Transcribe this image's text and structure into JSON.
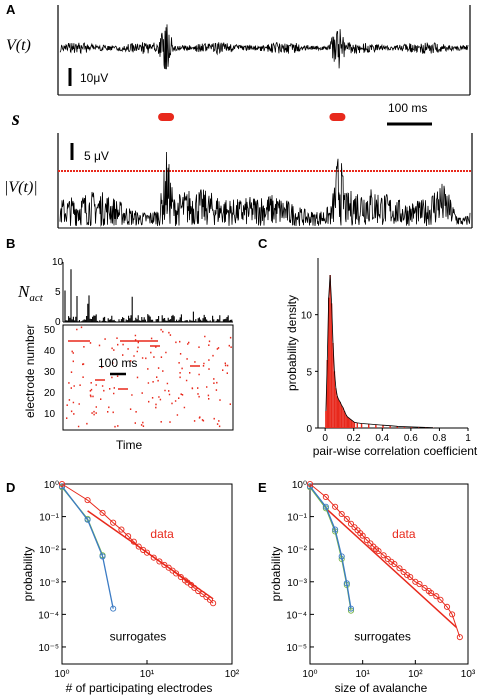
{
  "panels": {
    "A": {
      "letter": "A",
      "v_label": "V(t)",
      "v_scale": "10μV",
      "s_label": "s",
      "abs_label": "|V(t)|",
      "abs_scale": "5 μV",
      "time_scale": "100 ms",
      "threshold_color": "#e8291c",
      "event_times_fraction": [
        0.26,
        0.68
      ]
    },
    "B": {
      "letter": "B",
      "nact_label": "N",
      "nact_sub": "act",
      "yticks_top": [
        "0",
        "5",
        "10"
      ],
      "ylabel": "electrode number",
      "yticks": [
        "10",
        "20",
        "30",
        "40",
        "50"
      ],
      "xlabel": "Time",
      "time_scale": "100 ms",
      "raster_color": "#e8291c"
    }
  },
  "chart_data": [
    {
      "type": "bar",
      "id": "C",
      "letter": "C",
      "xlabel": "pair-wise correlation coefficient",
      "ylabel": "probability density",
      "xlim": [
        -0.05,
        1.0
      ],
      "ylim": [
        0,
        15
      ],
      "xticks": [
        "0",
        "0.2",
        "0.4",
        "0.6",
        "0.8",
        "1"
      ],
      "yticks": [
        "0",
        "5",
        "10"
      ],
      "bin_width": 0.01,
      "x": [
        0.0,
        0.01,
        0.02,
        0.03,
        0.04,
        0.05,
        0.06,
        0.07,
        0.08,
        0.09,
        0.1,
        0.11,
        0.12,
        0.13,
        0.14,
        0.15,
        0.16,
        0.17,
        0.18,
        0.19,
        0.2,
        0.22,
        0.25,
        0.3,
        0.35,
        0.4,
        0.45,
        0.5,
        0.55,
        0.6,
        0.65,
        0.7,
        0.75
      ],
      "values": [
        1.5,
        6.0,
        11.5,
        13.5,
        11.0,
        7.5,
        5.0,
        3.5,
        2.8,
        2.5,
        2.3,
        2.0,
        1.8,
        1.5,
        1.2,
        1.0,
        0.9,
        0.8,
        0.7,
        0.6,
        0.5,
        0.45,
        0.4,
        0.35,
        0.3,
        0.25,
        0.2,
        0.15,
        0.12,
        0.1,
        0.08,
        0.05,
        0.03
      ],
      "color": "#e8291c"
    },
    {
      "type": "line",
      "id": "D",
      "letter": "D",
      "xlabel": "# of participating electrodes",
      "ylabel": "probability",
      "xscale": "log",
      "yscale": "log",
      "xlim": [
        1,
        100
      ],
      "ylim": [
        3e-06,
        1
      ],
      "series": [
        {
          "name": "data",
          "color": "#e8291c",
          "marker": "circle",
          "x": [
            1,
            2,
            3,
            4,
            5,
            6,
            7,
            8,
            9,
            10,
            12,
            14,
            16,
            18,
            20,
            22,
            25,
            28,
            30,
            33,
            36,
            40,
            45,
            50,
            55,
            60
          ],
          "y": [
            1.0,
            0.32,
            0.13,
            0.065,
            0.04,
            0.025,
            0.017,
            0.012,
            0.0095,
            0.0078,
            0.0055,
            0.0042,
            0.0033,
            0.0027,
            0.0022,
            0.0018,
            0.0014,
            0.0011,
            0.00095,
            0.0008,
            0.00065,
            0.00052,
            0.00042,
            0.00034,
            0.00028,
            0.00022
          ]
        },
        {
          "name": "surrogates",
          "color": "#3b7bc4",
          "marker": "circle",
          "x": [
            1,
            2,
            3,
            4
          ],
          "y": [
            0.85,
            0.08,
            0.006,
            0.00015
          ]
        },
        {
          "name": "",
          "color": "#7ab648",
          "marker": "circle",
          "x": [
            1,
            2,
            3
          ],
          "y": [
            0.8,
            0.085,
            0.0065
          ]
        }
      ],
      "fit_line": {
        "x": [
          2,
          60
        ],
        "y": [
          0.15,
          0.0003
        ],
        "color": "#e8291c"
      }
    },
    {
      "type": "line",
      "id": "E",
      "letter": "E",
      "xlabel": "size of avalanche",
      "ylabel": "probability",
      "xscale": "log",
      "yscale": "log",
      "xlim": [
        1,
        1000
      ],
      "ylim": [
        3e-06,
        1
      ],
      "series": [
        {
          "name": "data",
          "color": "#e8291c",
          "marker": "circle",
          "x": [
            1,
            2,
            3,
            4,
            5,
            6,
            7,
            8,
            9,
            10,
            12,
            14,
            16,
            18,
            20,
            25,
            30,
            35,
            40,
            50,
            60,
            70,
            80,
            100,
            120,
            150,
            180,
            200,
            250,
            300,
            400,
            500,
            700
          ],
          "y": [
            1.0,
            0.4,
            0.2,
            0.12,
            0.085,
            0.06,
            0.047,
            0.038,
            0.031,
            0.026,
            0.019,
            0.015,
            0.012,
            0.01,
            0.0088,
            0.0065,
            0.005,
            0.0041,
            0.0035,
            0.0026,
            0.002,
            0.0016,
            0.0014,
            0.001,
            0.00085,
            0.00065,
            0.00052,
            0.00045,
            0.00036,
            0.00028,
            0.00017,
            0.0001,
            2e-05
          ]
        },
        {
          "name": "surrogates",
          "color": "#3b7bc4",
          "marker": "circle",
          "x": [
            1,
            2,
            3,
            4,
            5,
            6
          ],
          "y": [
            0.85,
            0.2,
            0.04,
            0.006,
            0.0009,
            0.00015
          ]
        },
        {
          "name": "",
          "color": "#7ab648",
          "marker": "circle",
          "x": [
            1,
            2,
            3,
            4,
            5,
            6
          ],
          "y": [
            0.8,
            0.18,
            0.035,
            0.005,
            0.0008,
            0.00013
          ]
        }
      ],
      "fit_line": {
        "x": [
          2,
          600
        ],
        "y": [
          0.18,
          4e-05
        ],
        "color": "#e8291c"
      }
    }
  ],
  "ticks": {
    "log_y": [
      "10⁰",
      "10⁻¹",
      "10⁻²",
      "10⁻³",
      "10⁻⁴",
      "10⁻⁵"
    ],
    "log_x_D": [
      "10⁰",
      "10¹",
      "10²"
    ],
    "log_x_E": [
      "10⁰",
      "10¹",
      "10²",
      "10³"
    ]
  }
}
